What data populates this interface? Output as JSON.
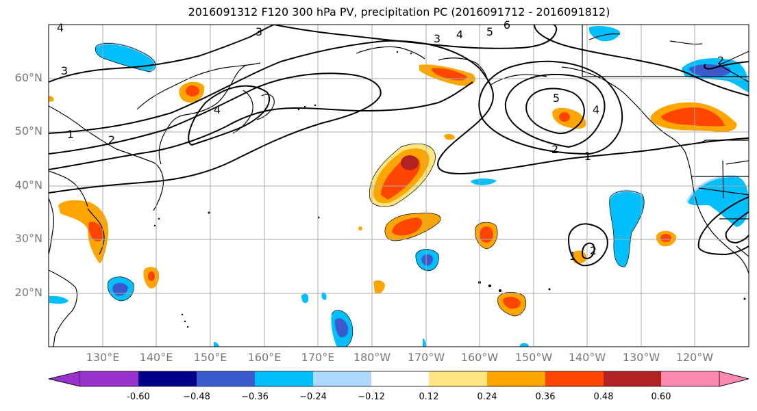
{
  "title": "2016091312 F120 300 hPa PV, precipitation PC (2016091712 - 2016091812)",
  "lat_labels": [
    "60°N",
    "50°N",
    "40°N",
    "30°N",
    "20°N"
  ],
  "lon_labels": [
    "130°E",
    "140°E",
    "150°E",
    "160°E",
    "170°E",
    "180°W",
    "170°W",
    "160°W",
    "150°W",
    "140°W",
    "130°W",
    "120°W"
  ],
  "contour_labels": [
    "1",
    "2",
    "3",
    "4",
    "5",
    "6"
  ],
  "colorbar": {
    "ticks": [
      "-0.60",
      "−0.48",
      "−0.36",
      "−0.24",
      "−0.12",
      "0.12",
      "0.24",
      "0.36",
      "0.48",
      "0.60"
    ],
    "colors": [
      "#9932CC",
      "#00008B",
      "#3A5ACD",
      "#00BFFF",
      "#ADD8FF",
      "#FFFFFF",
      "#FFE680",
      "#FFA500",
      "#FF4500",
      "#B22222",
      "#FF88B0"
    ]
  }
}
